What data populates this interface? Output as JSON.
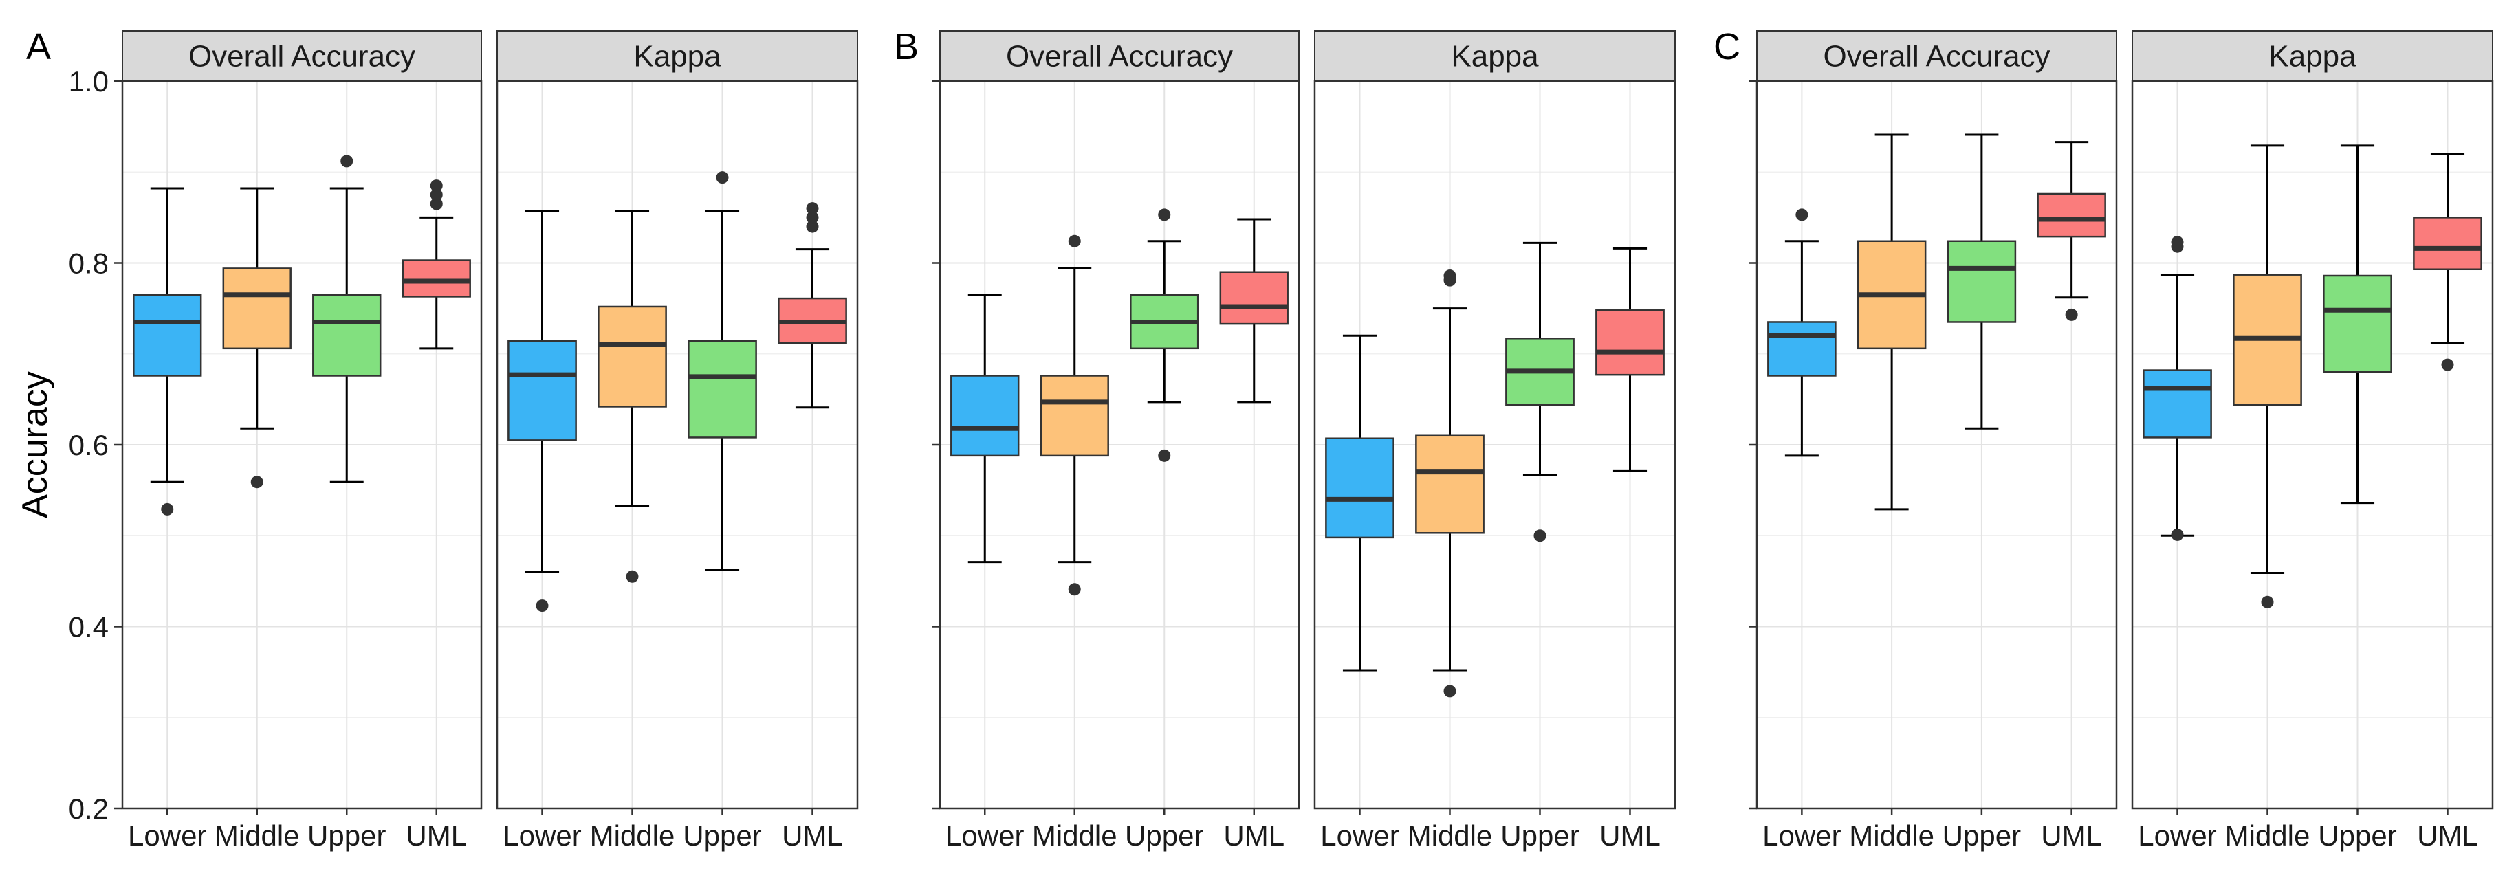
{
  "figure": {
    "ylabel": "Accuracy",
    "y_ticks": [
      "0.2",
      "0.4",
      "0.6",
      "0.8",
      "1.0"
    ],
    "colors": {
      "Lower": "#3bb4f5",
      "Middle": "#fdc27a",
      "Upper": "#82e07f",
      "UML": "#fa7c7c"
    }
  },
  "chart_data": [
    {
      "type": "boxplot",
      "group": "A",
      "facet": "Overall Accuracy",
      "categories": [
        "Lower",
        "Middle",
        "Upper",
        "UML"
      ],
      "ylim": [
        0.2,
        1.0
      ],
      "xlabel": "",
      "ylabel": "Accuracy",
      "boxes": [
        {
          "name": "Lower",
          "min": 0.559,
          "q1": 0.676,
          "median": 0.735,
          "q3": 0.765,
          "max": 0.882,
          "outliers": [
            0.529
          ]
        },
        {
          "name": "Middle",
          "min": 0.618,
          "q1": 0.706,
          "median": 0.765,
          "q3": 0.794,
          "max": 0.882,
          "outliers": [
            0.559
          ]
        },
        {
          "name": "Upper",
          "min": 0.559,
          "q1": 0.676,
          "median": 0.735,
          "q3": 0.765,
          "max": 0.882,
          "outliers": [
            0.912
          ]
        },
        {
          "name": "UML",
          "min": 0.706,
          "q1": 0.763,
          "median": 0.78,
          "q3": 0.803,
          "max": 0.85,
          "outliers": [
            0.865,
            0.875,
            0.885
          ]
        }
      ]
    },
    {
      "type": "boxplot",
      "group": "A",
      "facet": "Kappa",
      "categories": [
        "Lower",
        "Middle",
        "Upper",
        "UML"
      ],
      "ylim": [
        0.2,
        1.0
      ],
      "boxes": [
        {
          "name": "Lower",
          "min": 0.46,
          "q1": 0.605,
          "median": 0.677,
          "q3": 0.714,
          "max": 0.857,
          "outliers": [
            0.423
          ]
        },
        {
          "name": "Middle",
          "min": 0.533,
          "q1": 0.642,
          "median": 0.71,
          "q3": 0.752,
          "max": 0.857,
          "outliers": [
            0.455
          ]
        },
        {
          "name": "Upper",
          "min": 0.462,
          "q1": 0.608,
          "median": 0.675,
          "q3": 0.714,
          "max": 0.857,
          "outliers": [
            0.894
          ]
        },
        {
          "name": "UML",
          "min": 0.641,
          "q1": 0.712,
          "median": 0.735,
          "q3": 0.761,
          "max": 0.815,
          "outliers": [
            0.84,
            0.85,
            0.86
          ]
        }
      ]
    },
    {
      "type": "boxplot",
      "group": "B",
      "facet": "Overall Accuracy",
      "categories": [
        "Lower",
        "Middle",
        "Upper",
        "UML"
      ],
      "ylim": [
        0.2,
        1.0
      ],
      "boxes": [
        {
          "name": "Lower",
          "min": 0.471,
          "q1": 0.588,
          "median": 0.618,
          "q3": 0.676,
          "max": 0.765,
          "outliers": []
        },
        {
          "name": "Middle",
          "min": 0.471,
          "q1": 0.588,
          "median": 0.647,
          "q3": 0.676,
          "max": 0.794,
          "outliers": [
            0.441,
            0.824
          ]
        },
        {
          "name": "Upper",
          "min": 0.647,
          "q1": 0.706,
          "median": 0.735,
          "q3": 0.765,
          "max": 0.824,
          "outliers": [
            0.588,
            0.853
          ]
        },
        {
          "name": "UML",
          "min": 0.647,
          "q1": 0.733,
          "median": 0.752,
          "q3": 0.79,
          "max": 0.848,
          "outliers": []
        }
      ]
    },
    {
      "type": "boxplot",
      "group": "B",
      "facet": "Kappa",
      "categories": [
        "Lower",
        "Middle",
        "Upper",
        "UML"
      ],
      "ylim": [
        0.2,
        1.0
      ],
      "boxes": [
        {
          "name": "Lower",
          "min": 0.352,
          "q1": 0.498,
          "median": 0.54,
          "q3": 0.607,
          "max": 0.72,
          "outliers": []
        },
        {
          "name": "Middle",
          "min": 0.352,
          "q1": 0.503,
          "median": 0.57,
          "q3": 0.61,
          "max": 0.75,
          "outliers": [
            0.329,
            0.781,
            0.786
          ]
        },
        {
          "name": "Upper",
          "min": 0.567,
          "q1": 0.644,
          "median": 0.681,
          "q3": 0.717,
          "max": 0.822,
          "outliers": [
            0.5
          ]
        },
        {
          "name": "UML",
          "min": 0.571,
          "q1": 0.677,
          "median": 0.702,
          "q3": 0.748,
          "max": 0.816,
          "outliers": []
        }
      ]
    },
    {
      "type": "boxplot",
      "group": "C",
      "facet": "Overall Accuracy",
      "categories": [
        "Lower",
        "Middle",
        "Upper",
        "UML"
      ],
      "ylim": [
        0.2,
        1.0
      ],
      "boxes": [
        {
          "name": "Lower",
          "min": 0.588,
          "q1": 0.676,
          "median": 0.72,
          "q3": 0.735,
          "max": 0.824,
          "outliers": [
            0.853
          ]
        },
        {
          "name": "Middle",
          "min": 0.529,
          "q1": 0.706,
          "median": 0.765,
          "q3": 0.824,
          "max": 0.941,
          "outliers": []
        },
        {
          "name": "Upper",
          "min": 0.618,
          "q1": 0.735,
          "median": 0.794,
          "q3": 0.824,
          "max": 0.941,
          "outliers": []
        },
        {
          "name": "UML",
          "min": 0.762,
          "q1": 0.829,
          "median": 0.848,
          "q3": 0.876,
          "max": 0.933,
          "outliers": [
            0.743
          ]
        }
      ]
    },
    {
      "type": "boxplot",
      "group": "C",
      "facet": "Kappa",
      "categories": [
        "Lower",
        "Middle",
        "Upper",
        "UML"
      ],
      "ylim": [
        0.2,
        1.0
      ],
      "boxes": [
        {
          "name": "Lower",
          "min": 0.5,
          "q1": 0.608,
          "median": 0.662,
          "q3": 0.682,
          "max": 0.787,
          "outliers": [
            0.501,
            0.818,
            0.823
          ]
        },
        {
          "name": "Middle",
          "min": 0.459,
          "q1": 0.644,
          "median": 0.717,
          "q3": 0.787,
          "max": 0.929,
          "outliers": [
            0.427
          ]
        },
        {
          "name": "Upper",
          "min": 0.536,
          "q1": 0.68,
          "median": 0.748,
          "q3": 0.786,
          "max": 0.929,
          "outliers": []
        },
        {
          "name": "UML",
          "min": 0.712,
          "q1": 0.793,
          "median": 0.816,
          "q3": 0.85,
          "max": 0.92,
          "outliers": [
            0.688
          ]
        }
      ]
    }
  ]
}
